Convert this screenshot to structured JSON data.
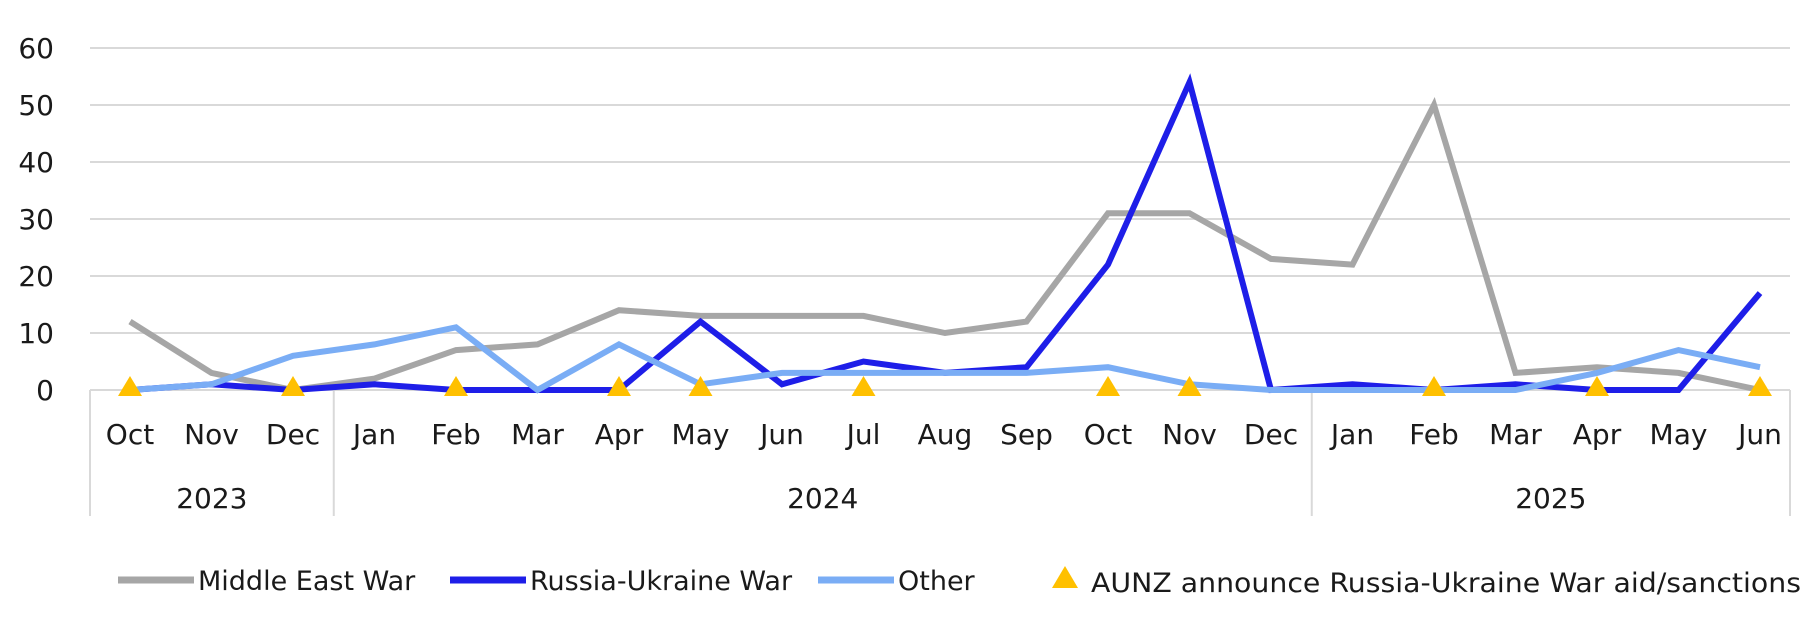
{
  "chart_data": {
    "type": "line",
    "title": "",
    "xlabel": "",
    "ylabel": "",
    "ylim": [
      0,
      60
    ],
    "yticks": [
      "0",
      "10",
      "20",
      "30",
      "40",
      "50",
      "60"
    ],
    "grid": true,
    "legend_position": "bottom",
    "categories": [
      "Oct",
      "Nov",
      "Dec",
      "Jan",
      "Feb",
      "Mar",
      "Apr",
      "May",
      "Jun",
      "Jul",
      "Aug",
      "Sep",
      "Oct",
      "Nov",
      "Dec",
      "Jan",
      "Feb",
      "Mar",
      "Apr",
      "May",
      "Jun"
    ],
    "years": [
      {
        "label": "2023",
        "start": 0,
        "end": 2
      },
      {
        "label": "2024",
        "start": 3,
        "end": 14
      },
      {
        "label": "2025",
        "start": 15,
        "end": 20
      }
    ],
    "series": [
      {
        "name": "Middle East War",
        "color": "#a6a6a6",
        "values": [
          12,
          3,
          0,
          2,
          7,
          8,
          14,
          13,
          13,
          13,
          10,
          12,
          31,
          31,
          23,
          22,
          50,
          3,
          4,
          3,
          0
        ]
      },
      {
        "name": "Russia-Ukraine War",
        "color": "#1e1ee8",
        "values": [
          0,
          1,
          0,
          1,
          0,
          0,
          0,
          12,
          1,
          5,
          3,
          4,
          22,
          54,
          0,
          1,
          0,
          1,
          0,
          0,
          17
        ]
      },
      {
        "name": "Other",
        "color": "#7aadf5",
        "values": [
          0,
          1,
          6,
          8,
          11,
          0,
          8,
          1,
          3,
          3,
          3,
          3,
          4,
          1,
          0,
          0,
          0,
          0,
          3,
          7,
          4
        ]
      }
    ],
    "markers": {
      "name": "AUNZ announce Russia-Ukraine War aid/sanctions",
      "color": "#ffc000",
      "shape": "triangle",
      "y": 0,
      "indices": [
        0,
        2,
        4,
        6,
        7,
        9,
        12,
        13,
        16,
        18,
        20
      ]
    }
  }
}
